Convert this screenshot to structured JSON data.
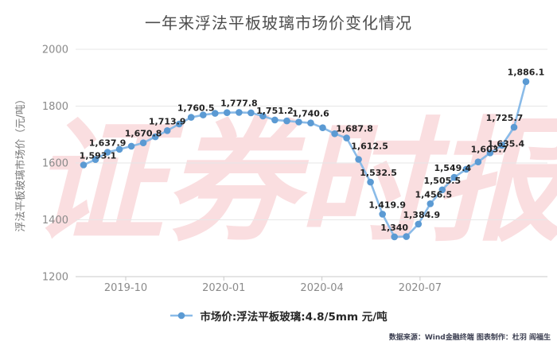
{
  "page": {
    "title": "一年来浮法平板玻璃市场价变化情况"
  },
  "watermark": {
    "text": "证券时报",
    "color": "rgba(242,176,181,0.42)"
  },
  "legend": {
    "label": "市场价:浮法平板玻璃:4.8/5mm 元/吨",
    "marker_color": "#5b9ad3",
    "line_color": "#8abbe8"
  },
  "footer": {
    "credit": "数据来源：Wind金融终端 图表制作：杜羽 阎福生"
  },
  "colors": {
    "line": "#8abbe8",
    "marker": "#5b9ad3",
    "grid": "#e7e7e7",
    "axis": "#c9c9c9",
    "tick_text": "#8a8a8a",
    "data_label": "#222222",
    "title_text": "#4d4d4d"
  },
  "chart_data": {
    "type": "line",
    "title": "一年来浮法平板玻璃市场价变化情况",
    "xlabel": "",
    "ylabel": "浮法平板玻璃市场价（元/吨）",
    "x_tick_labels": [
      "2019-10",
      "2020-01",
      "2020-04",
      "2020-07"
    ],
    "y_ticks": [
      2000,
      1800,
      1600,
      1400,
      1200
    ],
    "ylim": [
      1200,
      2000
    ],
    "grid": true,
    "legend_position": "bottom",
    "series": [
      {
        "name": "市场价:浮法平板玻璃:4.8/5mm 元/吨",
        "points": [
          {
            "v": 1593.1,
            "label": "1,593.1",
            "ldx": 18
          },
          {
            "v": 1612
          },
          {
            "v": 1637.9,
            "label": "1,637.9"
          },
          {
            "v": 1648
          },
          {
            "v": 1659
          },
          {
            "v": 1670.8,
            "label": "1,670.8"
          },
          {
            "v": 1692
          },
          {
            "v": 1713.9,
            "label": "1,713.9"
          },
          {
            "v": 1737
          },
          {
            "v": 1760.5,
            "label": "1,760.5",
            "ldx": 6
          },
          {
            "v": 1769
          },
          {
            "v": 1774.5
          },
          {
            "v": 1777
          },
          {
            "v": 1777.8,
            "label": "1,777.8"
          },
          {
            "v": 1776.5
          },
          {
            "v": 1765
          },
          {
            "v": 1751.2,
            "label": "1,751.2"
          },
          {
            "v": 1748
          },
          {
            "v": 1744
          },
          {
            "v": 1740.6,
            "label": "1,740.6"
          },
          {
            "v": 1724
          },
          {
            "v": 1703
          },
          {
            "v": 1687.8,
            "label": "1,687.8",
            "ldx": 10
          },
          {
            "v": 1612.5,
            "label": "1,612.5",
            "ldx": 14,
            "ldy": -5
          },
          {
            "v": 1532.5,
            "label": "1,532.5",
            "ldx": 10
          },
          {
            "v": 1419.9,
            "label": "1,419.9",
            "ldx": 6
          },
          {
            "v": 1340,
            "label": "1,340"
          },
          {
            "v": 1341
          },
          {
            "v": 1384.9,
            "label": "1,384.9",
            "ldx": 4
          },
          {
            "v": 1456.5,
            "label": "1,456.5",
            "ldx": 4
          },
          {
            "v": 1505.5,
            "label": "1,505.5"
          },
          {
            "v": 1549.4,
            "label": "1,549.4",
            "ldx": -2
          },
          {
            "v": 1578
          },
          {
            "v": 1603.7,
            "label": "1,603.7",
            "ldx": 14,
            "ldy": -4
          },
          {
            "v": 1635.4,
            "label": "1,635.4",
            "ldx": 20
          },
          {
            "v": 1662
          },
          {
            "v": 1725.7,
            "label": "1,725.7",
            "ldx": -12
          },
          {
            "v": 1886.1,
            "label": "1,886.1"
          }
        ]
      }
    ]
  }
}
